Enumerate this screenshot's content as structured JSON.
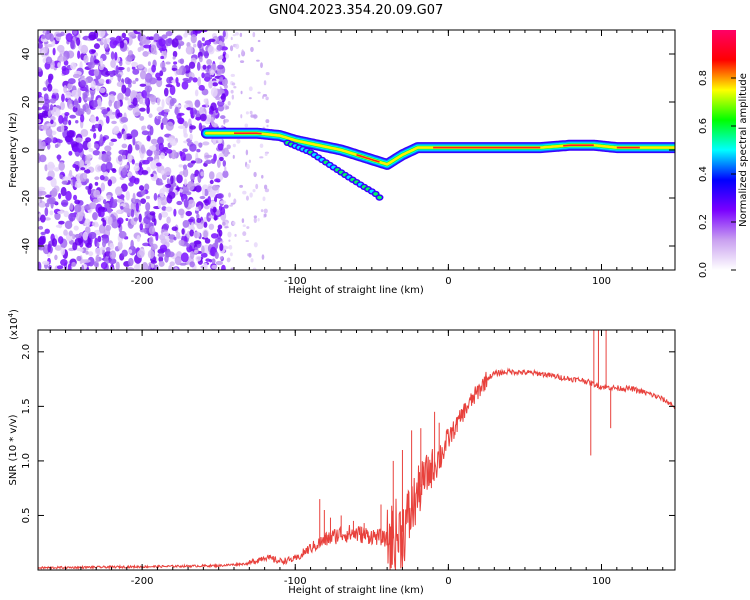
{
  "title": "GN04.2023.354.20.09.G07",
  "chart_data": [
    {
      "type": "heatmap",
      "xlabel": "Height of straight line (km)",
      "ylabel": "Frequency (Hz)",
      "xlim": [
        -268,
        148
      ],
      "ylim": [
        -50,
        50
      ],
      "xticks": [
        -200,
        -100,
        0,
        100
      ],
      "yticks": [
        -40,
        -20,
        0,
        20,
        40
      ],
      "noise_region_x": [
        -268,
        -145
      ],
      "sparse_noise_x": [
        -150,
        -118
      ],
      "ridge": {
        "x": [
          -158,
          -140,
          -125,
          -110,
          -100,
          -85,
          -70,
          -55,
          -45,
          -40,
          -30,
          -20,
          -10,
          0,
          20,
          40,
          60,
          80,
          95,
          110,
          130,
          148
        ],
        "y": [
          7,
          7,
          7,
          6,
          4,
          2,
          0,
          -3,
          -5,
          -6,
          -2,
          1,
          1,
          1,
          1,
          1,
          1,
          2,
          2,
          1,
          1,
          1
        ]
      },
      "branch": {
        "x": [
          -105,
          -90,
          -78,
          -66,
          -56,
          -48,
          -43
        ],
        "y": [
          3,
          -1,
          -6,
          -11,
          -15,
          -18,
          -21
        ]
      },
      "colorbar": {
        "label": "Normalized spectral amplitude",
        "range": [
          0,
          1
        ],
        "ticks": [
          "0.0",
          "0.2",
          "0.4",
          "0.6",
          "0.8"
        ],
        "colors": [
          "#ffffff",
          "#c9a0f0",
          "#7a00ff",
          "#0000ff",
          "#00ffff",
          "#00ff00",
          "#ffff00",
          "#ff0000",
          "#ff0066"
        ]
      }
    },
    {
      "type": "line",
      "xlabel": "Height of straight line (km)",
      "ylabel": "SNR (10 * v/v)",
      "scale_label": "(x10",
      "scale_exp": "4",
      "scale_close": ")",
      "xlim": [
        -268,
        148
      ],
      "ylim": [
        0,
        2.2
      ],
      "xticks": [
        -200,
        -100,
        0,
        100
      ],
      "yticks": [
        "0.5",
        "1.0",
        "1.5",
        "2.0"
      ],
      "color": "#e8413c",
      "envelope": {
        "x": [
          -268,
          -200,
          -150,
          -130,
          -120,
          -110,
          -100,
          -90,
          -80,
          -70,
          -60,
          -50,
          -45,
          -40,
          -30,
          -25,
          -20,
          -15,
          -10,
          -5,
          0,
          5,
          10,
          15,
          20,
          25,
          30,
          40,
          60,
          80,
          88,
          92,
          96,
          100,
          108,
          120,
          130,
          138,
          142,
          148
        ],
        "y": [
          0.02,
          0.03,
          0.04,
          0.06,
          0.12,
          0.08,
          0.1,
          0.18,
          0.25,
          0.3,
          0.3,
          0.28,
          0.27,
          0.25,
          0.35,
          0.5,
          0.7,
          0.85,
          0.95,
          1.05,
          1.2,
          1.32,
          1.45,
          1.55,
          1.65,
          1.75,
          1.8,
          1.82,
          1.8,
          1.75,
          1.74,
          1.72,
          1.7,
          1.68,
          1.67,
          1.66,
          1.62,
          1.58,
          1.55,
          1.5
        ]
      },
      "spikes": [
        {
          "x": -84,
          "y": 0.65
        },
        {
          "x": -81,
          "y": 0.55
        },
        {
          "x": -77,
          "y": 0.48
        },
        {
          "x": -70,
          "y": 0.5
        },
        {
          "x": -62,
          "y": 0.45
        },
        {
          "x": -55,
          "y": 0.43
        },
        {
          "x": -44,
          "y": 0.6
        },
        {
          "x": -36,
          "y": 1.0
        },
        {
          "x": -30,
          "y": 1.1
        },
        {
          "x": -24,
          "y": 1.28
        },
        {
          "x": -18,
          "y": 1.3
        },
        {
          "x": -9,
          "y": 1.45
        },
        {
          "x": -6,
          "y": 1.35
        },
        {
          "x": 95,
          "y": 2.2
        },
        {
          "x": 98,
          "y": 2.2
        },
        {
          "x": 103,
          "y": 2.2
        },
        {
          "x": 93,
          "y": 1.05
        },
        {
          "x": 106,
          "y": 1.3
        }
      ]
    }
  ]
}
